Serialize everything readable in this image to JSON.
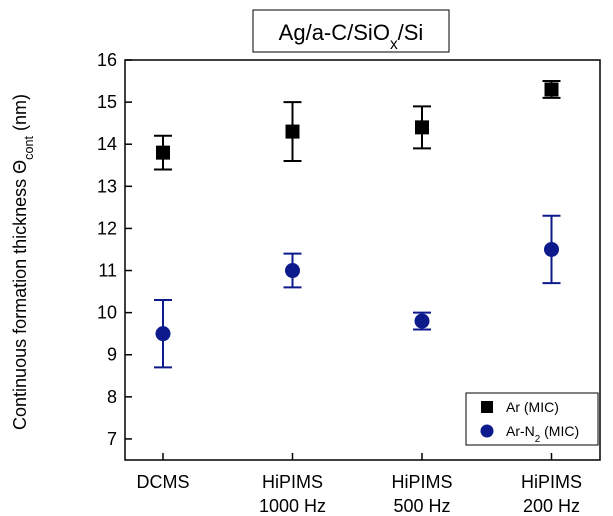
{
  "chart_data": {
    "type": "errorbar",
    "title": [
      "Ag/a-C/SiO",
      "x",
      "/Si"
    ],
    "y_label": [
      "Continuous formation thickness Θ",
      "cont",
      " (nm)"
    ],
    "categories": [
      [
        "DCMS"
      ],
      [
        "HiPIMS",
        "1000 Hz"
      ],
      [
        "HiPIMS",
        "500 Hz"
      ],
      [
        "HiPIMS",
        "200 Hz"
      ]
    ],
    "series": [
      {
        "name": "Ar (MIC)",
        "color": "#000000",
        "marker": "square",
        "values": [
          13.8,
          14.3,
          14.4,
          15.3
        ],
        "errors": [
          0.4,
          0.7,
          0.5,
          0.2
        ]
      },
      {
        "name": [
          "Ar-N",
          "2",
          " (MIC)"
        ],
        "color": "#0d1a8c",
        "marker": "circle",
        "values": [
          9.5,
          11.0,
          9.8,
          11.5
        ],
        "errors": [
          0.8,
          0.4,
          0.2,
          0.8
        ]
      }
    ],
    "ylim": [
      6.5,
      16
    ],
    "yticks": [
      7,
      8,
      9,
      10,
      11,
      12,
      13,
      14,
      15,
      16
    ],
    "legend": "lower right",
    "grid": false
  }
}
